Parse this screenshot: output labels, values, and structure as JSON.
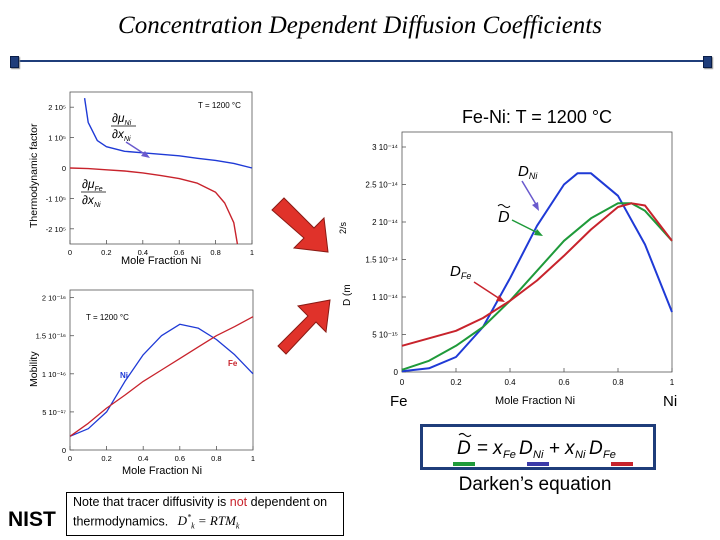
{
  "slide": {
    "title": "Concentration Dependent Diffusion Coefficients",
    "logo_text": "NIST"
  },
  "top_left_plot": {
    "ylabel": "Thermodynamic factor",
    "xlabel": "Mole Fraction Ni",
    "temperature_label": "T = 1200 °C",
    "y_tick_labels": [
      "2 10⁵",
      "1 10⁵",
      "0",
      "-1 10⁵",
      "-2 10⁵"
    ],
    "x_tick_labels": [
      "0",
      "0.2",
      "0.4",
      "0.6",
      "0.8",
      "1"
    ],
    "label_ni": {
      "num": "∂μ",
      "num_sub": "Ni",
      "den": "∂x",
      "den_sub": "Ni"
    },
    "label_fe": {
      "num": "∂μ",
      "num_sub": "Fe",
      "den": "∂x",
      "den_sub": "Ni"
    },
    "colors": {
      "ni": "#1f3ad6",
      "fe": "#c8232c"
    }
  },
  "bottom_left_plot": {
    "ylabel": "Mobility",
    "xlabel": "Mole Fraction Ni",
    "temperature_label": "T = 1200 °C",
    "y_tick_labels": [
      "2 10⁻¹⁶",
      "1.5 10⁻¹⁶",
      "1 10⁻¹⁶",
      "5 10⁻¹⁷",
      "0"
    ],
    "x_tick_labels": [
      "0",
      "0.2",
      "0.4",
      "0.6",
      "0.8",
      "1"
    ],
    "series_ni_label": "Ni",
    "series_fe_label": "Fe"
  },
  "right_plot": {
    "title": "Fe-Ni: T = 1200 °C",
    "xlabel": "Mole Fraction Ni",
    "left_end_label": "Fe",
    "right_end_label": "Ni",
    "y_axis_fragment": "2/s",
    "y_axis_fragment2": "D (m",
    "y_tick_labels": [
      "3 10⁻¹⁴",
      "2.5 10⁻¹⁴",
      "2 10⁻¹⁴",
      "1.5 10⁻¹⁴",
      "1 10⁻¹⁴",
      "5 10⁻¹⁵",
      "0"
    ],
    "x_tick_labels": [
      "0",
      "0.2",
      "0.4",
      "0.6",
      "0.8",
      "1"
    ],
    "label_dni": "D",
    "label_dni_sub": "Ni",
    "label_dtilde": "D",
    "label_dfe": "D",
    "label_dfe_sub": "Fe",
    "colors": {
      "dni": "#1f3ad6",
      "dtilde": "#1f9a3a",
      "dfe": "#c8232c"
    }
  },
  "chart_data": [
    {
      "type": "line",
      "xlabel": "Mole Fraction Ni",
      "ylabel": "Thermodynamic factor",
      "xlim": [
        0,
        1
      ],
      "ylim": [
        -250000,
        250000
      ],
      "series": [
        {
          "name": "∂μNi/∂xNi",
          "x": [
            0.08,
            0.1,
            0.15,
            0.2,
            0.3,
            0.4,
            0.5,
            0.6,
            0.7,
            0.8,
            0.9,
            1.0
          ],
          "y": [
            230000,
            150000,
            90000,
            70000,
            55000,
            50000,
            45000,
            40000,
            32000,
            25000,
            15000,
            0
          ]
        },
        {
          "name": "∂μFe/∂xNi",
          "x": [
            0.0,
            0.1,
            0.2,
            0.3,
            0.4,
            0.5,
            0.6,
            0.7,
            0.8,
            0.85,
            0.9,
            0.92
          ],
          "y": [
            0,
            -2000,
            -6000,
            -10000,
            -16000,
            -25000,
            -35000,
            -50000,
            -80000,
            -115000,
            -180000,
            -250000
          ]
        }
      ]
    },
    {
      "type": "line",
      "title": "T = 1200 °C",
      "xlabel": "Mole Fraction Ni",
      "ylabel": "Mobility",
      "xlim": [
        0,
        1
      ],
      "ylim": [
        0,
        2.1e-16
      ],
      "series": [
        {
          "name": "Ni",
          "x": [
            0.0,
            0.1,
            0.2,
            0.3,
            0.4,
            0.5,
            0.6,
            0.7,
            0.8,
            0.9,
            1.0
          ],
          "y": [
            1.8e-17,
            2.8e-17,
            5e-17,
            9e-17,
            1.25e-16,
            1.5e-16,
            1.65e-16,
            1.6e-16,
            1.45e-16,
            1.25e-16,
            1e-16
          ]
        },
        {
          "name": "Fe",
          "x": [
            0.0,
            0.1,
            0.2,
            0.3,
            0.4,
            0.5,
            0.6,
            0.7,
            0.8,
            0.9,
            1.0
          ],
          "y": [
            1.8e-17,
            3.5e-17,
            5.5e-17,
            7.2e-17,
            9e-17,
            1.05e-16,
            1.2e-16,
            1.35e-16,
            1.5e-16,
            1.62e-16,
            1.75e-16
          ]
        }
      ]
    },
    {
      "type": "line",
      "title": "Fe-Ni: T = 1200 °C",
      "xlabel": "Mole Fraction Ni",
      "xlim": [
        0,
        1
      ],
      "ylim": [
        0,
        3.2e-14
      ],
      "series": [
        {
          "name": "DNi",
          "x": [
            0.0,
            0.1,
            0.2,
            0.3,
            0.4,
            0.5,
            0.6,
            0.65,
            0.7,
            0.8,
            0.9,
            1.0
          ],
          "y": [
            1e-16,
            5e-16,
            2e-15,
            6e-15,
            1.25e-14,
            1.95e-14,
            2.5e-14,
            2.65e-14,
            2.65e-14,
            2.35e-14,
            1.7e-14,
            8e-15
          ]
        },
        {
          "name": "D̃",
          "x": [
            0.0,
            0.1,
            0.2,
            0.3,
            0.4,
            0.5,
            0.6,
            0.7,
            0.8,
            0.85,
            0.9,
            1.0
          ],
          "y": [
            3e-16,
            1.5e-15,
            3.5e-15,
            6e-15,
            9.5e-15,
            1.35e-14,
            1.75e-14,
            2.05e-14,
            2.25e-14,
            2.25e-14,
            2.15e-14,
            1.75e-14
          ]
        },
        {
          "name": "DFe",
          "x": [
            0.0,
            0.1,
            0.2,
            0.3,
            0.4,
            0.5,
            0.6,
            0.7,
            0.8,
            0.85,
            0.9,
            1.0
          ],
          "y": [
            3.5e-15,
            4.5e-15,
            5.5e-15,
            7.2e-15,
            9.5e-15,
            1.22e-14,
            1.55e-14,
            1.9e-14,
            2.2e-14,
            2.25e-14,
            2.22e-14,
            1.75e-14
          ]
        }
      ]
    }
  ],
  "darken": {
    "caption": "Darken’s equation",
    "colors": {
      "green": "#1f9a3a",
      "blue": "#3a3aa8",
      "red": "#c8232c"
    }
  },
  "note": {
    "part1": "Note that tracer diffusivity is ",
    "emphasis": "not",
    "part2": " dependent on thermodynamics.",
    "equation_lhs": "D",
    "equation_rhs": "= RTM",
    "equation_sub": "k",
    "equation_sup": "*"
  },
  "arrows": {
    "color": "#e0322a"
  }
}
